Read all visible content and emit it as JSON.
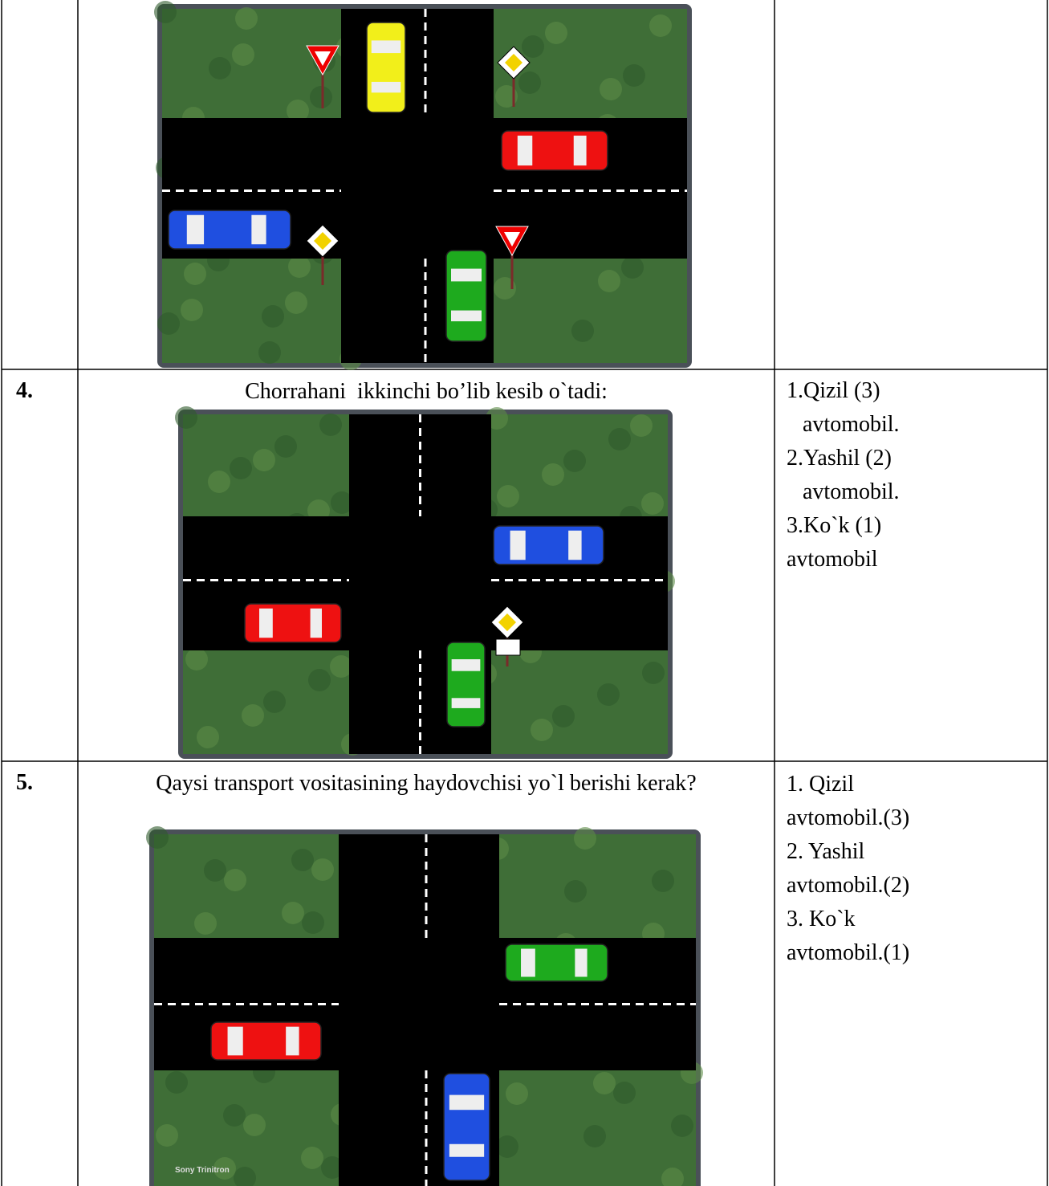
{
  "table": {
    "rows": [
      {
        "number": "4.",
        "question": "Chorrahani  ikkinchi bo’lib kesib o`tadi:",
        "answers": [
          "1.Qizil (3)",
          "avtomobil.",
          "2.Yashil (2)",
          "avtomobil.",
          "3.Ko`k (1)",
          "avtomobil"
        ]
      },
      {
        "number": "5.",
        "question": "Qaysi transport vositasining haydovchisi yo`l berishi kerak?",
        "answers": [
          "1. Qizil",
          "avtomobil.(3)",
          "2. Yashil",
          "avtomobil.(2)",
          "3. Ko`k",
          "avtomobil.(1)"
        ],
        "image_caption": "Sony Trinitron"
      }
    ]
  }
}
